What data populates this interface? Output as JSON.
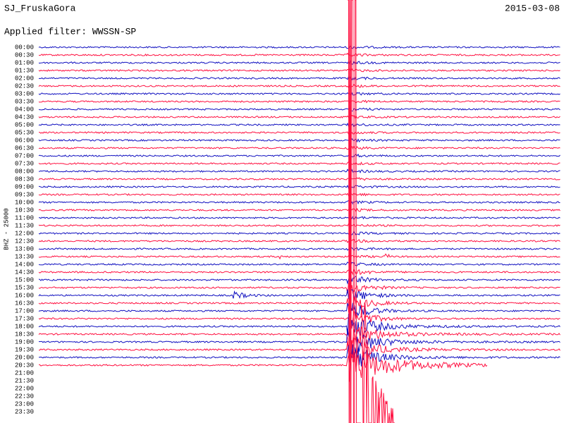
{
  "header": {
    "station": "SJ_FruskaGora",
    "date": "2015-03-08",
    "filter": "Applied filter: WWSSN-SP"
  },
  "axis_label": "BHZ - 25000",
  "rows": [
    "00:00",
    "00:30",
    "01:00",
    "01:30",
    "02:00",
    "02:30",
    "03:00",
    "03:30",
    "04:00",
    "04:30",
    "05:00",
    "05:30",
    "06:00",
    "06:30",
    "07:00",
    "07:30",
    "08:00",
    "08:30",
    "09:00",
    "09:30",
    "10:00",
    "10:30",
    "11:00",
    "11:30",
    "12:00",
    "12:30",
    "13:00",
    "13:30",
    "14:00",
    "14:30",
    "15:00",
    "15:30",
    "16:00",
    "16:30",
    "17:00",
    "17:30",
    "18:00",
    "18:30",
    "19:00",
    "19:30",
    "20:00",
    "20:30",
    "21:00",
    "21:30",
    "22:00",
    "22:30",
    "23:00",
    "23:30"
  ]
}
